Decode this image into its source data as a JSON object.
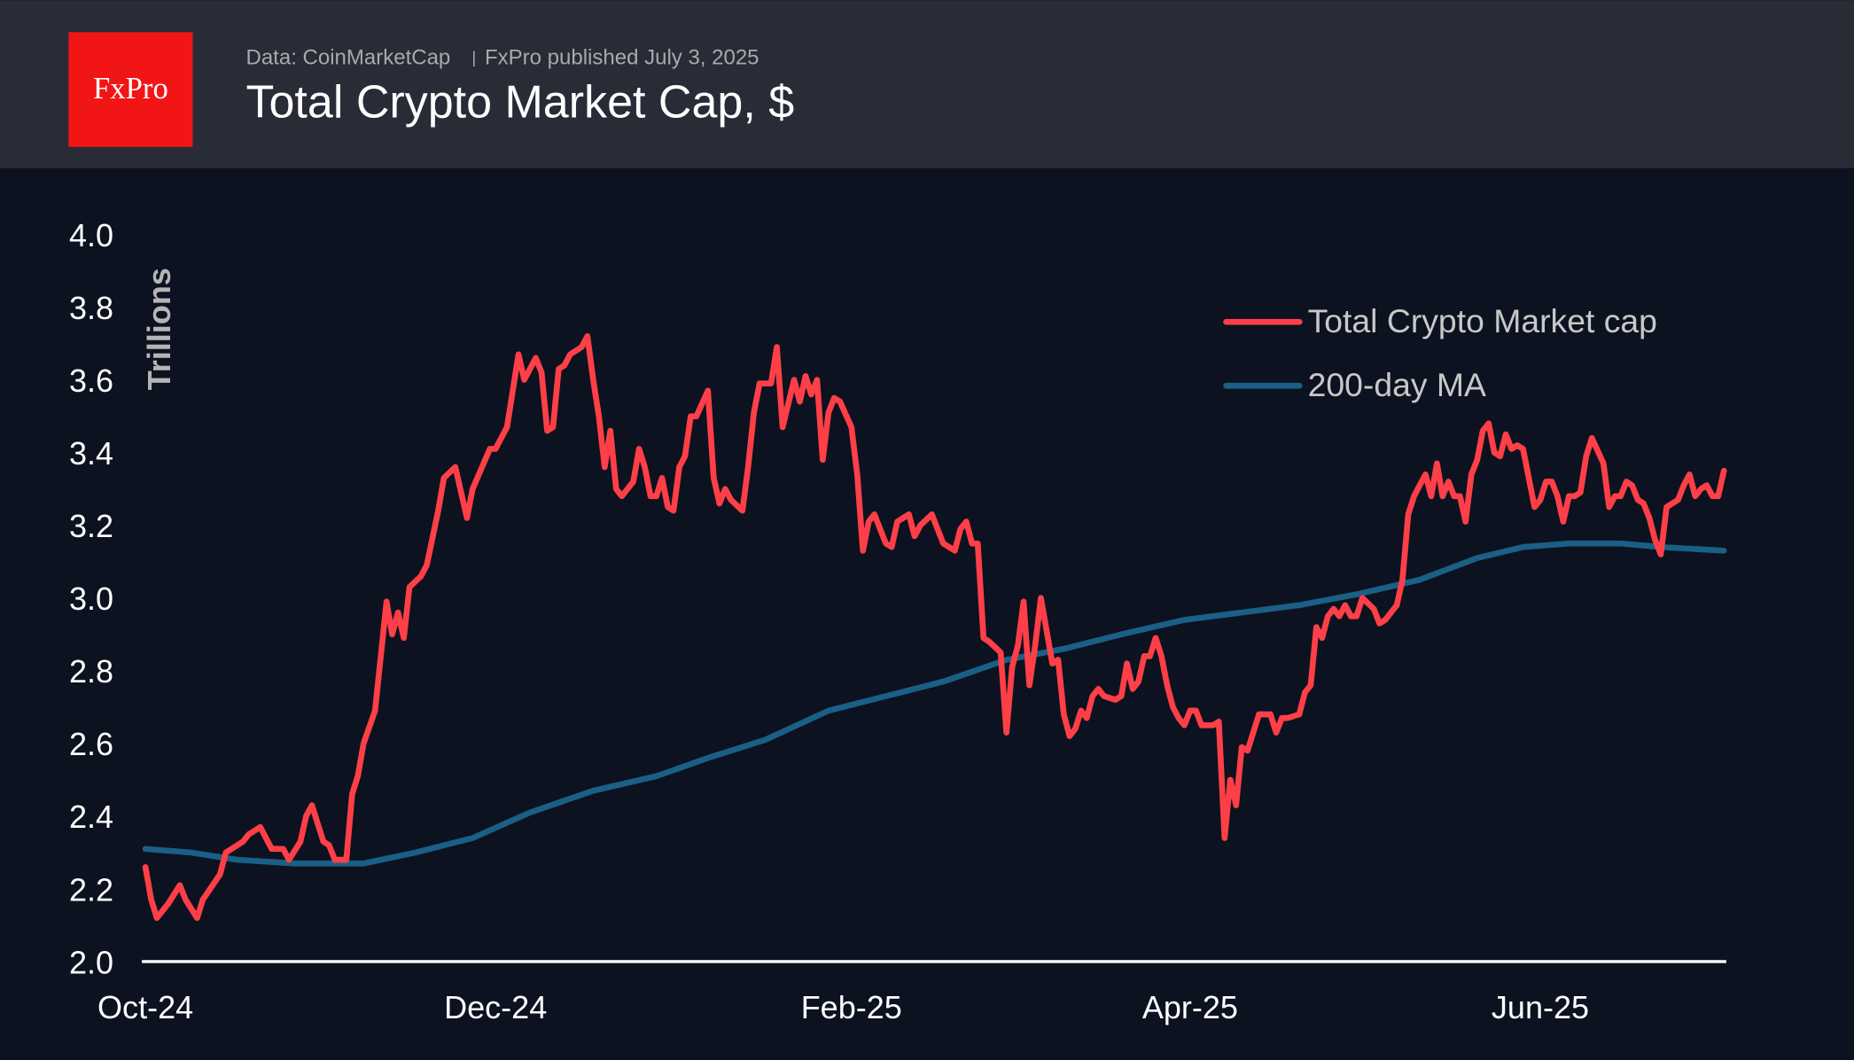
{
  "header": {
    "logo_text": "FxPro",
    "source": "Data: CoinMarketCap",
    "separator": "|",
    "published": "FxPro published July 3, 2025",
    "title": "Total Crypto Market Cap, $"
  },
  "colors": {
    "header_bg": "#292b37",
    "chart_bg": "#0c1220",
    "logo_bg": "#f21515",
    "market_cap": "#ff3f48",
    "ma": "#1a5f85",
    "axis": "#ffffff"
  },
  "chart_data": {
    "type": "line",
    "title": "Total Crypto Market Cap, $",
    "ylabel": "Trillions",
    "xlabel": "",
    "ylim": [
      2.0,
      4.0
    ],
    "xlim": [
      "2024-10-01",
      "2025-07-03"
    ],
    "yticks": [
      "2.0",
      "2.2",
      "2.4",
      "2.6",
      "2.8",
      "3.0",
      "3.2",
      "3.4",
      "3.6",
      "3.8",
      "4.0"
    ],
    "xticks": [
      {
        "date": "2024-10-01",
        "label": "Oct-24"
      },
      {
        "date": "2024-12-01",
        "label": "Dec-24"
      },
      {
        "date": "2025-02-01",
        "label": "Feb-25"
      },
      {
        "date": "2025-04-01",
        "label": "Apr-25"
      },
      {
        "date": "2025-06-01",
        "label": "Jun-25"
      }
    ],
    "grid": false,
    "legend_position": "top-right",
    "series": [
      {
        "name": "Total Crypto Market cap",
        "color": "#ff3f48",
        "points": [
          [
            "2024-10-01",
            2.26
          ],
          [
            "2024-10-02",
            2.17
          ],
          [
            "2024-10-03",
            2.12
          ],
          [
            "2024-10-05",
            2.16
          ],
          [
            "2024-10-07",
            2.21
          ],
          [
            "2024-10-08",
            2.17
          ],
          [
            "2024-10-10",
            2.12
          ],
          [
            "2024-10-11",
            2.17
          ],
          [
            "2024-10-14",
            2.24
          ],
          [
            "2024-10-15",
            2.3
          ],
          [
            "2024-10-18",
            2.33
          ],
          [
            "2024-10-19",
            2.35
          ],
          [
            "2024-10-21",
            2.37
          ],
          [
            "2024-10-23",
            2.31
          ],
          [
            "2024-10-25",
            2.31
          ],
          [
            "2024-10-26",
            2.28
          ],
          [
            "2024-10-28",
            2.33
          ],
          [
            "2024-10-29",
            2.4
          ],
          [
            "2024-10-30",
            2.43
          ],
          [
            "2024-11-01",
            2.33
          ],
          [
            "2024-11-02",
            2.32
          ],
          [
            "2024-11-03",
            2.28
          ],
          [
            "2024-11-05",
            2.28
          ],
          [
            "2024-11-06",
            2.46
          ],
          [
            "2024-11-07",
            2.51
          ],
          [
            "2024-11-08",
            2.6
          ],
          [
            "2024-11-10",
            2.69
          ],
          [
            "2024-11-12",
            2.99
          ],
          [
            "2024-11-13",
            2.9
          ],
          [
            "2024-11-14",
            2.96
          ],
          [
            "2024-11-15",
            2.89
          ],
          [
            "2024-11-16",
            3.03
          ],
          [
            "2024-11-18",
            3.06
          ],
          [
            "2024-11-19",
            3.09
          ],
          [
            "2024-11-21",
            3.24
          ],
          [
            "2024-11-22",
            3.33
          ],
          [
            "2024-11-24",
            3.36
          ],
          [
            "2024-11-26",
            3.22
          ],
          [
            "2024-11-27",
            3.3
          ],
          [
            "2024-11-30",
            3.41
          ],
          [
            "2024-12-01",
            3.41
          ],
          [
            "2024-12-03",
            3.47
          ],
          [
            "2024-12-05",
            3.67
          ],
          [
            "2024-12-06",
            3.6
          ],
          [
            "2024-12-08",
            3.66
          ],
          [
            "2024-12-09",
            3.62
          ],
          [
            "2024-12-10",
            3.46
          ],
          [
            "2024-12-11",
            3.47
          ],
          [
            "2024-12-12",
            3.63
          ],
          [
            "2024-12-13",
            3.64
          ],
          [
            "2024-12-14",
            3.67
          ],
          [
            "2024-12-16",
            3.69
          ],
          [
            "2024-12-17",
            3.72
          ],
          [
            "2024-12-18",
            3.6
          ],
          [
            "2024-12-19",
            3.5
          ],
          [
            "2024-12-20",
            3.36
          ],
          [
            "2024-12-21",
            3.46
          ],
          [
            "2024-12-22",
            3.3
          ],
          [
            "2024-12-23",
            3.28
          ],
          [
            "2024-12-25",
            3.32
          ],
          [
            "2024-12-26",
            3.41
          ],
          [
            "2024-12-27",
            3.36
          ],
          [
            "2024-12-28",
            3.28
          ],
          [
            "2024-12-29",
            3.28
          ],
          [
            "2024-12-30",
            3.33
          ],
          [
            "2024-12-31",
            3.25
          ],
          [
            "2025-01-01",
            3.24
          ],
          [
            "2025-01-02",
            3.36
          ],
          [
            "2025-01-03",
            3.39
          ],
          [
            "2025-01-04",
            3.5
          ],
          [
            "2025-01-05",
            3.5
          ],
          [
            "2025-01-07",
            3.57
          ],
          [
            "2025-01-08",
            3.33
          ],
          [
            "2025-01-09",
            3.26
          ],
          [
            "2025-01-10",
            3.3
          ],
          [
            "2025-01-11",
            3.27
          ],
          [
            "2025-01-13",
            3.24
          ],
          [
            "2025-01-14",
            3.36
          ],
          [
            "2025-01-15",
            3.51
          ],
          [
            "2025-01-16",
            3.59
          ],
          [
            "2025-01-18",
            3.59
          ],
          [
            "2025-01-19",
            3.69
          ],
          [
            "2025-01-20",
            3.47
          ],
          [
            "2025-01-22",
            3.6
          ],
          [
            "2025-01-23",
            3.54
          ],
          [
            "2025-01-24",
            3.61
          ],
          [
            "2025-01-25",
            3.56
          ],
          [
            "2025-01-26",
            3.6
          ],
          [
            "2025-01-27",
            3.38
          ],
          [
            "2025-01-28",
            3.51
          ],
          [
            "2025-01-29",
            3.55
          ],
          [
            "2025-01-30",
            3.54
          ],
          [
            "2025-02-01",
            3.47
          ],
          [
            "2025-02-02",
            3.34
          ],
          [
            "2025-02-03",
            3.13
          ],
          [
            "2025-02-04",
            3.21
          ],
          [
            "2025-02-05",
            3.23
          ],
          [
            "2025-02-07",
            3.15
          ],
          [
            "2025-02-08",
            3.14
          ],
          [
            "2025-02-09",
            3.21
          ],
          [
            "2025-02-11",
            3.23
          ],
          [
            "2025-02-12",
            3.17
          ],
          [
            "2025-02-13",
            3.2
          ],
          [
            "2025-02-15",
            3.23
          ],
          [
            "2025-02-16",
            3.19
          ],
          [
            "2025-02-17",
            3.15
          ],
          [
            "2025-02-19",
            3.13
          ],
          [
            "2025-02-20",
            3.19
          ],
          [
            "2025-02-21",
            3.21
          ],
          [
            "2025-02-22",
            3.15
          ],
          [
            "2025-02-23",
            3.15
          ],
          [
            "2025-02-24",
            2.89
          ],
          [
            "2025-02-25",
            2.88
          ],
          [
            "2025-02-27",
            2.85
          ],
          [
            "2025-02-28",
            2.63
          ],
          [
            "2025-03-01",
            2.81
          ],
          [
            "2025-03-02",
            2.87
          ],
          [
            "2025-03-03",
            2.99
          ],
          [
            "2025-03-04",
            2.76
          ],
          [
            "2025-03-05",
            2.87
          ],
          [
            "2025-03-06",
            3.0
          ],
          [
            "2025-03-07",
            2.91
          ],
          [
            "2025-03-08",
            2.82
          ],
          [
            "2025-03-09",
            2.83
          ],
          [
            "2025-03-10",
            2.68
          ],
          [
            "2025-03-11",
            2.62
          ],
          [
            "2025-03-12",
            2.64
          ],
          [
            "2025-03-13",
            2.69
          ],
          [
            "2025-03-14",
            2.67
          ],
          [
            "2025-03-15",
            2.73
          ],
          [
            "2025-03-16",
            2.75
          ],
          [
            "2025-03-17",
            2.73
          ],
          [
            "2025-03-19",
            2.72
          ],
          [
            "2025-03-20",
            2.73
          ],
          [
            "2025-03-21",
            2.82
          ],
          [
            "2025-03-22",
            2.75
          ],
          [
            "2025-03-23",
            2.77
          ],
          [
            "2025-03-24",
            2.84
          ],
          [
            "2025-03-25",
            2.84
          ],
          [
            "2025-03-26",
            2.89
          ],
          [
            "2025-03-27",
            2.84
          ],
          [
            "2025-03-28",
            2.76
          ],
          [
            "2025-03-29",
            2.7
          ],
          [
            "2025-03-30",
            2.67
          ],
          [
            "2025-03-31",
            2.65
          ],
          [
            "2025-04-01",
            2.69
          ],
          [
            "2025-04-02",
            2.69
          ],
          [
            "2025-04-03",
            2.65
          ],
          [
            "2025-04-05",
            2.65
          ],
          [
            "2025-04-06",
            2.66
          ],
          [
            "2025-04-07",
            2.34
          ],
          [
            "2025-04-08",
            2.5
          ],
          [
            "2025-04-09",
            2.43
          ],
          [
            "2025-04-10",
            2.59
          ],
          [
            "2025-04-11",
            2.58
          ],
          [
            "2025-04-12",
            2.63
          ],
          [
            "2025-04-13",
            2.68
          ],
          [
            "2025-04-14",
            2.68
          ],
          [
            "2025-04-15",
            2.68
          ],
          [
            "2025-04-16",
            2.63
          ],
          [
            "2025-04-17",
            2.67
          ],
          [
            "2025-04-18",
            2.67
          ],
          [
            "2025-04-20",
            2.68
          ],
          [
            "2025-04-21",
            2.74
          ],
          [
            "2025-04-22",
            2.76
          ],
          [
            "2025-04-23",
            2.92
          ],
          [
            "2025-04-24",
            2.89
          ],
          [
            "2025-04-25",
            2.95
          ],
          [
            "2025-04-26",
            2.97
          ],
          [
            "2025-04-27",
            2.95
          ],
          [
            "2025-04-28",
            2.98
          ],
          [
            "2025-04-29",
            2.95
          ],
          [
            "2025-04-30",
            2.95
          ],
          [
            "2025-05-01",
            3.0
          ],
          [
            "2025-05-03",
            2.97
          ],
          [
            "2025-05-04",
            2.93
          ],
          [
            "2025-05-05",
            2.94
          ],
          [
            "2025-05-07",
            2.98
          ],
          [
            "2025-05-08",
            3.05
          ],
          [
            "2025-05-09",
            3.23
          ],
          [
            "2025-05-10",
            3.28
          ],
          [
            "2025-05-11",
            3.31
          ],
          [
            "2025-05-12",
            3.34
          ],
          [
            "2025-05-13",
            3.28
          ],
          [
            "2025-05-14",
            3.37
          ],
          [
            "2025-05-15",
            3.28
          ],
          [
            "2025-05-16",
            3.32
          ],
          [
            "2025-05-17",
            3.28
          ],
          [
            "2025-05-18",
            3.28
          ],
          [
            "2025-05-19",
            3.21
          ],
          [
            "2025-05-20",
            3.34
          ],
          [
            "2025-05-21",
            3.38
          ],
          [
            "2025-05-22",
            3.46
          ],
          [
            "2025-05-23",
            3.48
          ],
          [
            "2025-05-24",
            3.4
          ],
          [
            "2025-05-25",
            3.39
          ],
          [
            "2025-05-26",
            3.45
          ],
          [
            "2025-05-27",
            3.41
          ],
          [
            "2025-05-28",
            3.42
          ],
          [
            "2025-05-29",
            3.41
          ],
          [
            "2025-05-31",
            3.25
          ],
          [
            "2025-06-01",
            3.27
          ],
          [
            "2025-06-02",
            3.32
          ],
          [
            "2025-06-03",
            3.32
          ],
          [
            "2025-06-04",
            3.28
          ],
          [
            "2025-06-05",
            3.21
          ],
          [
            "2025-06-06",
            3.28
          ],
          [
            "2025-06-07",
            3.28
          ],
          [
            "2025-06-08",
            3.29
          ],
          [
            "2025-06-09",
            3.39
          ],
          [
            "2025-06-10",
            3.44
          ],
          [
            "2025-06-12",
            3.37
          ],
          [
            "2025-06-13",
            3.25
          ],
          [
            "2025-06-14",
            3.28
          ],
          [
            "2025-06-15",
            3.28
          ],
          [
            "2025-06-16",
            3.32
          ],
          [
            "2025-06-17",
            3.31
          ],
          [
            "2025-06-18",
            3.27
          ],
          [
            "2025-06-19",
            3.26
          ],
          [
            "2025-06-20",
            3.22
          ],
          [
            "2025-06-21",
            3.16
          ],
          [
            "2025-06-22",
            3.12
          ],
          [
            "2025-06-23",
            3.25
          ],
          [
            "2025-06-25",
            3.27
          ],
          [
            "2025-06-26",
            3.31
          ],
          [
            "2025-06-27",
            3.34
          ],
          [
            "2025-06-28",
            3.28
          ],
          [
            "2025-06-29",
            3.3
          ],
          [
            "2025-06-30",
            3.31
          ],
          [
            "2025-07-01",
            3.28
          ],
          [
            "2025-07-02",
            3.28
          ],
          [
            "2025-07-03",
            3.35
          ]
        ]
      },
      {
        "name": "200-day MA",
        "color": "#1a5f85",
        "points": [
          [
            "2024-10-01",
            2.31
          ],
          [
            "2024-10-09",
            2.3
          ],
          [
            "2024-10-17",
            2.28
          ],
          [
            "2024-10-27",
            2.27
          ],
          [
            "2024-11-08",
            2.27
          ],
          [
            "2024-11-17",
            2.3
          ],
          [
            "2024-11-27",
            2.34
          ],
          [
            "2024-12-07",
            2.41
          ],
          [
            "2024-12-18",
            2.47
          ],
          [
            "2024-12-29",
            2.51
          ],
          [
            "2025-01-07",
            2.56
          ],
          [
            "2025-01-17",
            2.61
          ],
          [
            "2025-01-28",
            2.69
          ],
          [
            "2025-02-07",
            2.73
          ],
          [
            "2025-02-17",
            2.77
          ],
          [
            "2025-02-28",
            2.83
          ],
          [
            "2025-03-10",
            2.86
          ],
          [
            "2025-03-20",
            2.9
          ],
          [
            "2025-03-31",
            2.94
          ],
          [
            "2025-04-10",
            2.96
          ],
          [
            "2025-04-20",
            2.98
          ],
          [
            "2025-04-30",
            3.01
          ],
          [
            "2025-05-11",
            3.05
          ],
          [
            "2025-05-21",
            3.11
          ],
          [
            "2025-05-29",
            3.14
          ],
          [
            "2025-06-06",
            3.15
          ],
          [
            "2025-06-15",
            3.15
          ],
          [
            "2025-06-22",
            3.14
          ],
          [
            "2025-07-03",
            3.13
          ]
        ]
      }
    ]
  }
}
